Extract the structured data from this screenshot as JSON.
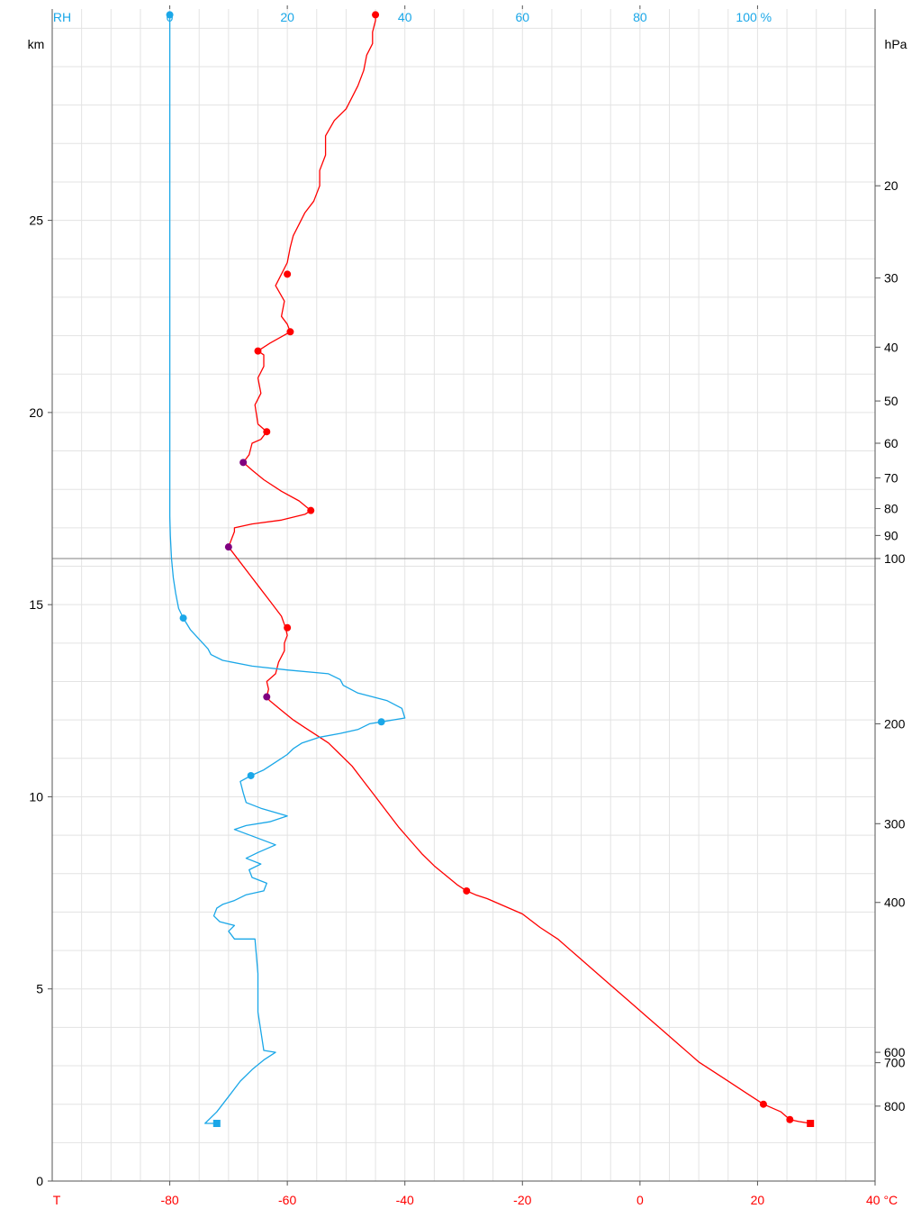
{
  "chart_data": {
    "type": "line",
    "title": "",
    "xlabel_bottom": "T",
    "xunit_bottom": "°C",
    "xlabel_top": "RH",
    "xunit_top": "%",
    "ylabel_left": "km",
    "ylabel_right": "hPa",
    "xlim_temperature": [
      -100,
      40
    ],
    "xlim_humidity": [
      -20,
      120
    ],
    "ylim_km": [
      0,
      30.5
    ],
    "grid": true,
    "bottom_ticks": [
      "-80",
      "-60",
      "-40",
      "-20",
      "0",
      "20",
      "40 °C"
    ],
    "bottom_tick_values": [
      -80,
      -60,
      -40,
      -20,
      0,
      20,
      40
    ],
    "top_ticks": [
      "0",
      "20",
      "40",
      "60",
      "80",
      "100 %"
    ],
    "top_tick_values": [
      0,
      20,
      40,
      60,
      80,
      100
    ],
    "left_ticks": [
      "0",
      "5",
      "10",
      "15",
      "20",
      "25"
    ],
    "left_tick_values": [
      0,
      5,
      10,
      15,
      20,
      25
    ],
    "right_ticks": [
      {
        "label": "20",
        "km": 25.9
      },
      {
        "label": "30",
        "km": 23.5
      },
      {
        "label": "40",
        "km": 21.7
      },
      {
        "label": "50",
        "km": 20.3
      },
      {
        "label": "60",
        "km": 19.2
      },
      {
        "label": "70",
        "km": 18.3
      },
      {
        "label": "80",
        "km": 17.5
      },
      {
        "label": "90",
        "km": 16.8
      },
      {
        "label": "100",
        "km": 16.2
      },
      {
        "label": "200",
        "km": 11.9
      },
      {
        "label": "300",
        "km": 9.3
      },
      {
        "label": "400",
        "km": 7.25
      },
      {
        "label": "600",
        "km": 3.35
      },
      {
        "label": "700",
        "km": 3.08
      },
      {
        "label": "800",
        "km": 1.95
      }
    ],
    "tropopause_km": 16.2,
    "colors": {
      "temperature": "#ff0000",
      "humidity": "#1aa7e8",
      "level_marker": "#800080",
      "axis": "#555555",
      "grid": "#e3e3e3",
      "tropopause": "#999999"
    },
    "series": [
      {
        "key": "temperature",
        "unit": "°C",
        "points": [
          [
            29,
            1.5
          ],
          [
            27,
            1.55
          ],
          [
            25.5,
            1.6
          ],
          [
            24,
            1.8
          ],
          [
            21,
            2.0
          ],
          [
            18,
            2.3
          ],
          [
            15,
            2.6
          ],
          [
            12,
            2.9
          ],
          [
            10,
            3.1
          ],
          [
            7,
            3.5
          ],
          [
            4,
            3.9
          ],
          [
            1,
            4.3
          ],
          [
            -2,
            4.7
          ],
          [
            -5,
            5.1
          ],
          [
            -8,
            5.5
          ],
          [
            -11,
            5.9
          ],
          [
            -14,
            6.3
          ],
          [
            -17,
            6.6
          ],
          [
            -20,
            6.95
          ],
          [
            -23,
            7.15
          ],
          [
            -26,
            7.35
          ],
          [
            -28,
            7.45
          ],
          [
            -29.5,
            7.55
          ],
          [
            -31,
            7.7
          ],
          [
            -33,
            7.95
          ],
          [
            -35,
            8.2
          ],
          [
            -37,
            8.5
          ],
          [
            -39,
            8.85
          ],
          [
            -41,
            9.2
          ],
          [
            -43,
            9.6
          ],
          [
            -45,
            10.0
          ],
          [
            -47,
            10.4
          ],
          [
            -49,
            10.8
          ],
          [
            -51,
            11.1
          ],
          [
            -53,
            11.4
          ],
          [
            -55,
            11.6
          ],
          [
            -57,
            11.8
          ],
          [
            -59,
            12.0
          ],
          [
            -61,
            12.25
          ],
          [
            -63,
            12.5
          ],
          [
            -63.5,
            12.6
          ],
          [
            -63.2,
            12.8
          ],
          [
            -63.5,
            13.0
          ],
          [
            -62,
            13.2
          ],
          [
            -61.5,
            13.5
          ],
          [
            -60.5,
            13.8
          ],
          [
            -60.5,
            14.0
          ],
          [
            -60,
            14.2
          ],
          [
            -60.3,
            14.4
          ],
          [
            -61,
            14.7
          ],
          [
            -63,
            15.1
          ],
          [
            -65,
            15.5
          ],
          [
            -66.5,
            15.8
          ],
          [
            -68,
            16.1
          ],
          [
            -69,
            16.3
          ],
          [
            -70,
            16.5
          ],
          [
            -69.5,
            16.7
          ],
          [
            -69,
            16.9
          ],
          [
            -69,
            17.0
          ],
          [
            -66,
            17.1
          ],
          [
            -61,
            17.2
          ],
          [
            -57,
            17.35
          ],
          [
            -56,
            17.45
          ],
          [
            -58,
            17.7
          ],
          [
            -61,
            17.95
          ],
          [
            -64,
            18.25
          ],
          [
            -66,
            18.5
          ],
          [
            -67.5,
            18.7
          ],
          [
            -66.5,
            18.9
          ],
          [
            -66,
            19.2
          ],
          [
            -64.5,
            19.3
          ],
          [
            -63.5,
            19.5
          ],
          [
            -65,
            19.7
          ],
          [
            -65.5,
            20.2
          ],
          [
            -64.5,
            20.5
          ],
          [
            -65,
            20.9
          ],
          [
            -64,
            21.2
          ],
          [
            -64,
            21.5
          ],
          [
            -65,
            21.6
          ],
          [
            -63,
            21.8
          ],
          [
            -59.5,
            22.1
          ],
          [
            -60,
            22.3
          ],
          [
            -61,
            22.5
          ],
          [
            -60.5,
            22.9
          ],
          [
            -62,
            23.3
          ],
          [
            -61,
            23.6
          ],
          [
            -60,
            23.9
          ],
          [
            -59.5,
            24.3
          ],
          [
            -59,
            24.6
          ],
          [
            -58,
            24.9
          ],
          [
            -57,
            25.2
          ],
          [
            -55.5,
            25.5
          ],
          [
            -54.5,
            25.9
          ],
          [
            -54.5,
            26.3
          ],
          [
            -53.5,
            26.7
          ],
          [
            -53.5,
            27.2
          ],
          [
            -52,
            27.6
          ],
          [
            -50,
            27.9
          ],
          [
            -49,
            28.2
          ],
          [
            -48,
            28.5
          ],
          [
            -47,
            28.9
          ],
          [
            -46.5,
            29.3
          ],
          [
            -45.5,
            29.6
          ],
          [
            -45.5,
            29.9
          ],
          [
            -45,
            30.2
          ],
          [
            -45,
            30.35
          ]
        ],
        "markers": [
          [
            29,
            1.5,
            "square"
          ],
          [
            25.5,
            1.6
          ],
          [
            21,
            2.0
          ],
          [
            -29.5,
            7.55
          ],
          [
            -63.5,
            12.6,
            "level"
          ],
          [
            -60,
            14.4
          ],
          [
            -70,
            16.5,
            "level"
          ],
          [
            -56,
            17.45
          ],
          [
            -67.5,
            18.7,
            "level"
          ],
          [
            -63.5,
            19.5
          ],
          [
            -65,
            21.6
          ],
          [
            -59.5,
            22.1
          ],
          [
            -60,
            23.6
          ],
          [
            -45,
            30.35
          ]
        ]
      },
      {
        "key": "humidity",
        "unit": "%",
        "points": [
          [
            8,
            1.5
          ],
          [
            6,
            1.5
          ],
          [
            8,
            1.8
          ],
          [
            10,
            2.2
          ],
          [
            12,
            2.6
          ],
          [
            14,
            2.9
          ],
          [
            16,
            3.15
          ],
          [
            18,
            3.35
          ],
          [
            16,
            3.4
          ],
          [
            15,
            4.4
          ],
          [
            15,
            5.4
          ],
          [
            14.5,
            6.3
          ],
          [
            11,
            6.3
          ],
          [
            10,
            6.5
          ],
          [
            11,
            6.65
          ],
          [
            8.5,
            6.75
          ],
          [
            7.5,
            6.9
          ],
          [
            8,
            7.1
          ],
          [
            9,
            7.2
          ],
          [
            11,
            7.3
          ],
          [
            13,
            7.45
          ],
          [
            16,
            7.55
          ],
          [
            16.5,
            7.75
          ],
          [
            14,
            7.9
          ],
          [
            13.5,
            8.1
          ],
          [
            15.5,
            8.25
          ],
          [
            13,
            8.4
          ],
          [
            15,
            8.55
          ],
          [
            18,
            8.75
          ],
          [
            14.5,
            8.95
          ],
          [
            11,
            9.15
          ],
          [
            13,
            9.25
          ],
          [
            17,
            9.35
          ],
          [
            20,
            9.5
          ],
          [
            15.5,
            9.7
          ],
          [
            13,
            9.85
          ],
          [
            12.5,
            10.1
          ],
          [
            12,
            10.4
          ],
          [
            13.8,
            10.55
          ],
          [
            16,
            10.7
          ],
          [
            18,
            10.9
          ],
          [
            20,
            11.1
          ],
          [
            21,
            11.25
          ],
          [
            22.5,
            11.4
          ],
          [
            25.5,
            11.55
          ],
          [
            29,
            11.65
          ],
          [
            32,
            11.75
          ],
          [
            34,
            11.9
          ],
          [
            36,
            11.95
          ],
          [
            40,
            12.05
          ],
          [
            39.5,
            12.3
          ],
          [
            37,
            12.5
          ],
          [
            32,
            12.7
          ],
          [
            29.5,
            12.9
          ],
          [
            29,
            13.05
          ],
          [
            27,
            13.2
          ],
          [
            20,
            13.3
          ],
          [
            14,
            13.4
          ],
          [
            9,
            13.55
          ],
          [
            7,
            13.7
          ],
          [
            6.5,
            13.85
          ],
          [
            5,
            14.1
          ],
          [
            3.5,
            14.35
          ],
          [
            2.3,
            14.65
          ],
          [
            1.5,
            14.9
          ],
          [
            1,
            15.3
          ],
          [
            0.6,
            15.7
          ],
          [
            0.3,
            16.2
          ],
          [
            0.1,
            16.8
          ],
          [
            0,
            17.3
          ],
          [
            0,
            20
          ],
          [
            0,
            25
          ],
          [
            0,
            30.35
          ]
        ],
        "markers": [
          [
            8,
            1.5,
            "square"
          ],
          [
            36,
            11.95
          ],
          [
            13.8,
            10.55
          ],
          [
            2.3,
            14.65
          ],
          [
            0,
            30.35
          ]
        ]
      }
    ]
  }
}
